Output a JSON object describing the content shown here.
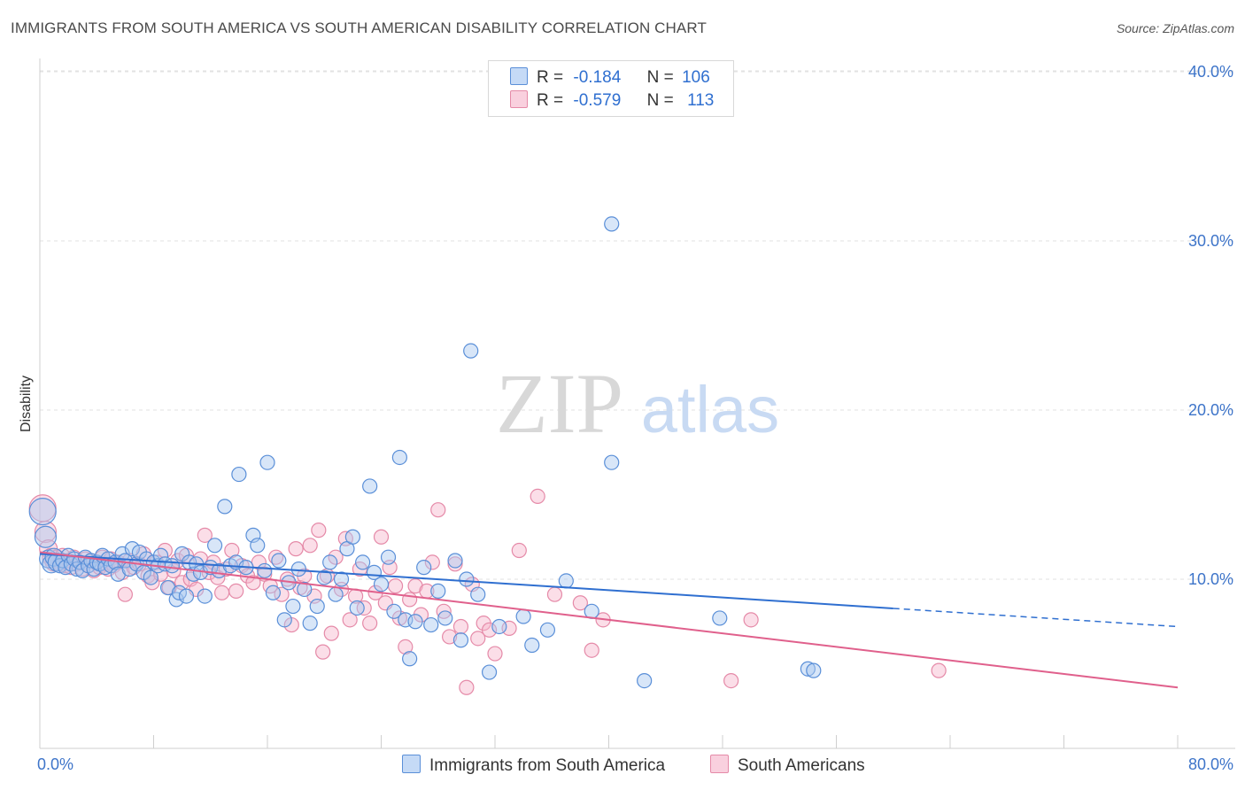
{
  "header": {
    "title": "IMMIGRANTS FROM SOUTH AMERICA VS SOUTH AMERICAN DISABILITY CORRELATION CHART",
    "source": "Source: ZipAtlas.com"
  },
  "watermark": {
    "zip": "ZIP",
    "atlas": "atlas"
  },
  "colors": {
    "blue_fill": "#a9c8f0",
    "blue_stroke": "#5a8fd8",
    "blue_line": "#2f6fd0",
    "pink_fill": "#f6b6cb",
    "pink_stroke": "#e58aa8",
    "pink_line": "#e0608c",
    "axis_text": "#3d74c9"
  },
  "legend": {
    "rows": [
      {
        "r_label": "R =",
        "r_value": "-0.184",
        "n_label": "N =",
        "n_value": "106"
      },
      {
        "r_label": "R =",
        "r_value": "-0.579",
        "n_label": "N =",
        "n_value": "113"
      }
    ]
  },
  "chart_data": {
    "type": "scatter",
    "title": "IMMIGRANTS FROM SOUTH AMERICA VS SOUTH AMERICAN DISABILITY CORRELATION CHART",
    "xlabel": "",
    "ylabel": "Disability",
    "xlim": [
      0,
      80
    ],
    "ylim": [
      0,
      40
    ],
    "x_tick_labels": [
      "0.0%",
      "80.0%"
    ],
    "y_ticks": [
      10,
      20,
      30,
      40
    ],
    "y_tick_labels": [
      "10.0%",
      "20.0%",
      "30.0%",
      "40.0%"
    ],
    "grid": true,
    "legend_position": "top-center",
    "series": [
      {
        "name": "Immigrants from South America",
        "color": "#5a8fd8",
        "r": -0.184,
        "n": 106,
        "trend": {
          "x": [
            0,
            60,
            80
          ],
          "y": [
            11.5,
            8.2,
            7.2
          ],
          "solid_until": 60
        },
        "points": [
          [
            0.2,
            14.0
          ],
          [
            0.4,
            12.5
          ],
          [
            0.6,
            11.2
          ],
          [
            0.8,
            10.9
          ],
          [
            1.0,
            11.3
          ],
          [
            1.2,
            11.0
          ],
          [
            1.4,
            10.8
          ],
          [
            1.6,
            11.1
          ],
          [
            1.8,
            10.7
          ],
          [
            2.0,
            11.4
          ],
          [
            2.2,
            10.9
          ],
          [
            2.4,
            11.2
          ],
          [
            2.6,
            10.6
          ],
          [
            2.8,
            11.0
          ],
          [
            3.0,
            10.5
          ],
          [
            3.2,
            11.3
          ],
          [
            3.4,
            10.8
          ],
          [
            3.6,
            11.1
          ],
          [
            3.8,
            10.6
          ],
          [
            4.0,
            11.0
          ],
          [
            4.2,
            10.9
          ],
          [
            4.4,
            11.4
          ],
          [
            4.6,
            10.7
          ],
          [
            4.8,
            11.2
          ],
          [
            5.0,
            10.8
          ],
          [
            5.3,
            11.0
          ],
          [
            5.5,
            10.3
          ],
          [
            5.8,
            11.5
          ],
          [
            6.0,
            11.1
          ],
          [
            6.3,
            10.6
          ],
          [
            6.5,
            11.8
          ],
          [
            6.8,
            10.9
          ],
          [
            7.0,
            11.6
          ],
          [
            7.3,
            10.4
          ],
          [
            7.5,
            11.2
          ],
          [
            7.8,
            10.1
          ],
          [
            8.0,
            11.0
          ],
          [
            8.3,
            10.8
          ],
          [
            8.5,
            11.4
          ],
          [
            8.8,
            10.9
          ],
          [
            9.0,
            9.5
          ],
          [
            9.3,
            10.8
          ],
          [
            9.6,
            8.8
          ],
          [
            9.8,
            9.2
          ],
          [
            10.0,
            11.5
          ],
          [
            10.3,
            9.0
          ],
          [
            10.5,
            11.0
          ],
          [
            10.8,
            10.3
          ],
          [
            11.0,
            10.9
          ],
          [
            11.3,
            10.4
          ],
          [
            11.6,
            9.0
          ],
          [
            12.0,
            10.7
          ],
          [
            12.3,
            12.0
          ],
          [
            12.6,
            10.5
          ],
          [
            13.0,
            14.3
          ],
          [
            13.4,
            10.8
          ],
          [
            13.8,
            11.0
          ],
          [
            14.0,
            16.2
          ],
          [
            14.5,
            10.7
          ],
          [
            15.0,
            12.6
          ],
          [
            15.3,
            12.0
          ],
          [
            15.8,
            10.5
          ],
          [
            16.0,
            16.9
          ],
          [
            16.4,
            9.2
          ],
          [
            16.8,
            11.1
          ],
          [
            17.2,
            7.6
          ],
          [
            17.5,
            9.8
          ],
          [
            17.8,
            8.4
          ],
          [
            18.2,
            10.6
          ],
          [
            18.6,
            9.4
          ],
          [
            19.0,
            7.4
          ],
          [
            19.5,
            8.4
          ],
          [
            20.0,
            10.1
          ],
          [
            20.4,
            11.0
          ],
          [
            20.8,
            9.1
          ],
          [
            21.2,
            10.0
          ],
          [
            21.6,
            11.8
          ],
          [
            22.0,
            12.5
          ],
          [
            22.3,
            8.3
          ],
          [
            22.7,
            11.0
          ],
          [
            23.2,
            15.5
          ],
          [
            23.5,
            10.4
          ],
          [
            24.0,
            9.7
          ],
          [
            24.5,
            11.3
          ],
          [
            24.9,
            8.1
          ],
          [
            25.3,
            17.2
          ],
          [
            25.7,
            7.6
          ],
          [
            26.0,
            5.3
          ],
          [
            26.4,
            7.5
          ],
          [
            27.0,
            10.7
          ],
          [
            27.5,
            7.3
          ],
          [
            28.0,
            9.3
          ],
          [
            28.5,
            7.7
          ],
          [
            29.2,
            11.1
          ],
          [
            29.6,
            6.4
          ],
          [
            30.0,
            10.0
          ],
          [
            30.3,
            23.5
          ],
          [
            30.8,
            9.1
          ],
          [
            31.6,
            4.5
          ],
          [
            32.3,
            7.2
          ],
          [
            34.0,
            7.8
          ],
          [
            34.6,
            6.1
          ],
          [
            35.7,
            7.0
          ],
          [
            37.0,
            9.9
          ],
          [
            38.8,
            8.1
          ],
          [
            40.2,
            31.0
          ],
          [
            40.2,
            16.9
          ],
          [
            42.5,
            4.0
          ],
          [
            47.8,
            7.7
          ],
          [
            54.0,
            4.7
          ],
          [
            54.4,
            4.6
          ]
        ]
      },
      {
        "name": "South Americans",
        "color": "#e58aa8",
        "r": -0.579,
        "n": 113,
        "trend": {
          "x": [
            0,
            80
          ],
          "y": [
            11.6,
            3.6
          ]
        },
        "points": [
          [
            0.2,
            14.2
          ],
          [
            0.4,
            12.8
          ],
          [
            0.6,
            11.8
          ],
          [
            0.8,
            11.3
          ],
          [
            1.0,
            11.0
          ],
          [
            1.2,
            11.2
          ],
          [
            1.4,
            10.9
          ],
          [
            1.6,
            11.4
          ],
          [
            1.8,
            10.8
          ],
          [
            2.0,
            11.1
          ],
          [
            2.2,
            10.7
          ],
          [
            2.4,
            11.3
          ],
          [
            2.6,
            10.9
          ],
          [
            2.8,
            11.0
          ],
          [
            3.0,
            10.6
          ],
          [
            3.2,
            11.2
          ],
          [
            3.4,
            10.8
          ],
          [
            3.6,
            11.1
          ],
          [
            3.8,
            10.5
          ],
          [
            4.0,
            11.0
          ],
          [
            4.2,
            10.7
          ],
          [
            4.4,
            11.3
          ],
          [
            4.6,
            10.9
          ],
          [
            4.8,
            10.6
          ],
          [
            5.0,
            11.2
          ],
          [
            5.2,
            10.8
          ],
          [
            5.5,
            11.0
          ],
          [
            5.8,
            10.4
          ],
          [
            6.0,
            9.1
          ],
          [
            6.3,
            11.1
          ],
          [
            6.6,
            10.7
          ],
          [
            7.0,
            10.9
          ],
          [
            7.3,
            11.5
          ],
          [
            7.6,
            10.2
          ],
          [
            7.9,
            9.8
          ],
          [
            8.2,
            11.0
          ],
          [
            8.5,
            10.3
          ],
          [
            8.8,
            11.7
          ],
          [
            9.1,
            9.5
          ],
          [
            9.4,
            10.5
          ],
          [
            9.7,
            11.1
          ],
          [
            10.0,
            9.8
          ],
          [
            10.3,
            11.4
          ],
          [
            10.6,
            10.0
          ],
          [
            11.0,
            9.4
          ],
          [
            11.3,
            11.2
          ],
          [
            11.6,
            12.6
          ],
          [
            11.9,
            10.4
          ],
          [
            12.2,
            11.0
          ],
          [
            12.5,
            10.1
          ],
          [
            12.8,
            9.2
          ],
          [
            13.1,
            10.6
          ],
          [
            13.5,
            11.7
          ],
          [
            13.8,
            9.3
          ],
          [
            14.2,
            10.8
          ],
          [
            14.6,
            10.2
          ],
          [
            15.0,
            9.8
          ],
          [
            15.4,
            11.0
          ],
          [
            15.8,
            10.3
          ],
          [
            16.2,
            9.6
          ],
          [
            16.6,
            11.3
          ],
          [
            17.0,
            9.1
          ],
          [
            17.4,
            10.0
          ],
          [
            17.7,
            7.3
          ],
          [
            18.0,
            11.8
          ],
          [
            18.3,
            9.5
          ],
          [
            18.6,
            10.2
          ],
          [
            19.0,
            12.0
          ],
          [
            19.3,
            9.0
          ],
          [
            19.6,
            12.9
          ],
          [
            19.9,
            5.7
          ],
          [
            20.2,
            10.2
          ],
          [
            20.5,
            6.8
          ],
          [
            20.8,
            11.3
          ],
          [
            21.2,
            9.4
          ],
          [
            21.5,
            12.4
          ],
          [
            21.8,
            7.6
          ],
          [
            22.2,
            9.0
          ],
          [
            22.5,
            10.6
          ],
          [
            22.8,
            8.3
          ],
          [
            23.2,
            7.4
          ],
          [
            23.6,
            9.2
          ],
          [
            24.0,
            12.5
          ],
          [
            24.3,
            8.6
          ],
          [
            24.6,
            10.7
          ],
          [
            25.0,
            9.6
          ],
          [
            25.3,
            7.7
          ],
          [
            25.7,
            6.0
          ],
          [
            26.0,
            8.8
          ],
          [
            26.4,
            9.6
          ],
          [
            26.8,
            7.9
          ],
          [
            27.2,
            9.3
          ],
          [
            27.6,
            11.0
          ],
          [
            28.0,
            14.1
          ],
          [
            28.4,
            8.1
          ],
          [
            28.8,
            6.6
          ],
          [
            29.2,
            10.9
          ],
          [
            29.6,
            7.2
          ],
          [
            30.0,
            3.6
          ],
          [
            30.4,
            9.7
          ],
          [
            30.8,
            6.5
          ],
          [
            31.2,
            7.4
          ],
          [
            31.6,
            7.0
          ],
          [
            32.0,
            5.6
          ],
          [
            33.0,
            7.1
          ],
          [
            33.7,
            11.7
          ],
          [
            35.0,
            14.9
          ],
          [
            36.2,
            9.1
          ],
          [
            38.0,
            8.6
          ],
          [
            38.8,
            5.8
          ],
          [
            39.6,
            7.6
          ],
          [
            48.6,
            4.0
          ],
          [
            50.0,
            7.6
          ],
          [
            63.2,
            4.6
          ]
        ]
      }
    ]
  },
  "bottom_legend": [
    {
      "label": "Immigrants from South America"
    },
    {
      "label": "South Americans"
    }
  ]
}
